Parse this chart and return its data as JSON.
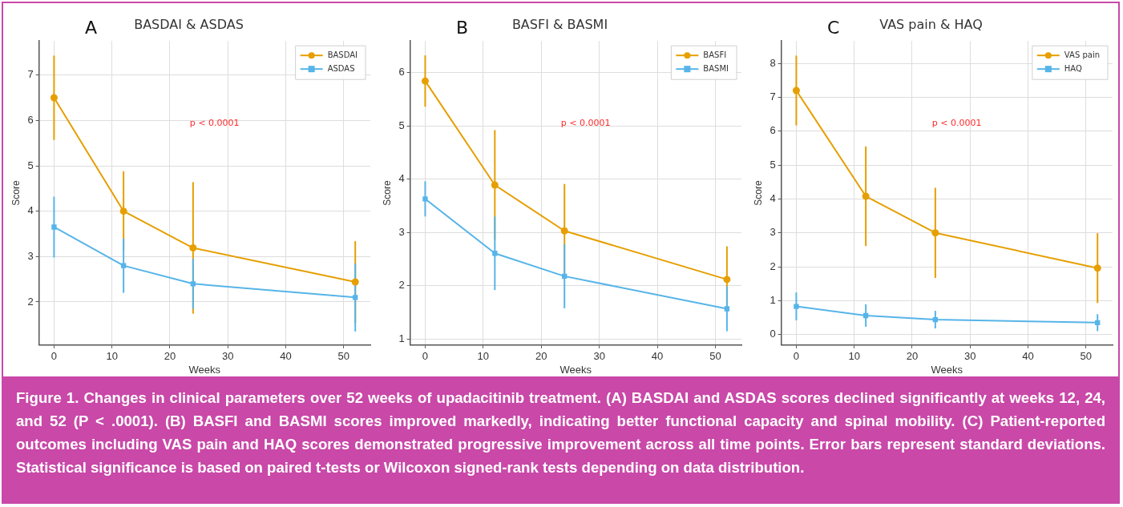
{
  "chart_data": [
    {
      "type": "line",
      "title": "BASDAI & ASDAS",
      "xlabel": "Weeks",
      "ylabel": "Score",
      "x": [
        0,
        12,
        24,
        52
      ],
      "xlim": [
        -2.6,
        54.6
      ],
      "xticks": [
        0,
        10,
        20,
        30,
        40,
        50
      ],
      "ylim": [
        1.05,
        7.75
      ],
      "yticks": [
        2,
        3,
        4,
        5,
        6,
        7
      ],
      "grid": true,
      "legend": "top right",
      "series": [
        {
          "name": "BASDAI",
          "color": "#e69f00",
          "marker": "circle",
          "values": [
            6.5,
            4.0,
            3.19,
            2.44
          ],
          "errors": [
            0.93,
            0.88,
            1.45,
            0.9
          ]
        },
        {
          "name": "ASDAS",
          "color": "#56b4e9",
          "marker": "square",
          "values": [
            3.65,
            2.8,
            2.4,
            2.1
          ],
          "errors": [
            0.67,
            0.6,
            0.55,
            0.75
          ]
        }
      ],
      "annotations": [
        "A",
        "p < 0.0001",
        "Figure 1. Changes in clinical parameters over 52 weeks of upadacitinib treatment. (A) BASDAI and ASDAS scores declined significantly at weeks 12, 24, and 52 (P < .0001). (B) BASFI and BASMI scores improved markedly, indicating better functional capacity and spinal mobility. (C) Patient-reported outcomes including VAS pain and HAQ scores demonstrated progressive improvement across all time points. Error bars represent standard deviations. Statistical significance is based on paired t-tests or Wilcoxon signed-rank tests depending on data distribution."
      ]
    },
    {
      "type": "line",
      "title": "BASFI & BASMI",
      "xlabel": "Weeks",
      "ylabel": "Score",
      "x": [
        0,
        12,
        24,
        52
      ],
      "xlim": [
        -2.6,
        54.5
      ],
      "xticks": [
        0,
        10,
        20,
        30,
        40,
        50
      ],
      "ylim": [
        0.89,
        6.59
      ],
      "yticks": [
        1,
        2,
        3,
        4,
        5,
        6
      ],
      "grid": true,
      "legend": "top right",
      "series": [
        {
          "name": "BASFI",
          "color": "#e69f00",
          "marker": "circle",
          "values": [
            5.84,
            3.89,
            3.03,
            2.12
          ],
          "errors": [
            0.48,
            1.03,
            0.88,
            0.62
          ]
        },
        {
          "name": "BASMI",
          "color": "#56b4e9",
          "marker": "square",
          "values": [
            3.63,
            2.61,
            2.18,
            1.57
          ],
          "errors": [
            0.33,
            0.69,
            0.6,
            0.42
          ]
        }
      ],
      "annotations": [
        "B",
        "p < 0.0001"
      ]
    },
    {
      "type": "line",
      "title": "VAS pain & HAQ",
      "xlabel": "Weeks",
      "ylabel": "Score",
      "x": [
        0,
        12,
        24,
        52
      ],
      "xlim": [
        -2.6,
        54.6
      ],
      "xticks": [
        0,
        10,
        20,
        30,
        40,
        50
      ],
      "ylim": [
        -0.31,
        8.66
      ],
      "yticks": [
        0,
        1,
        2,
        3,
        4,
        5,
        6,
        7,
        8
      ],
      "grid": true,
      "legend": "top right",
      "series": [
        {
          "name": "VAS pain",
          "color": "#e69f00",
          "marker": "circle",
          "values": [
            7.2,
            4.08,
            3.0,
            1.96
          ],
          "errors": [
            1.03,
            1.47,
            1.33,
            1.03
          ]
        },
        {
          "name": "HAQ",
          "color": "#56b4e9",
          "marker": "square",
          "values": [
            0.83,
            0.56,
            0.44,
            0.35
          ],
          "errors": [
            0.41,
            0.33,
            0.26,
            0.25
          ]
        }
      ],
      "annotations": [
        "C",
        "p < 0.0001"
      ]
    }
  ]
}
